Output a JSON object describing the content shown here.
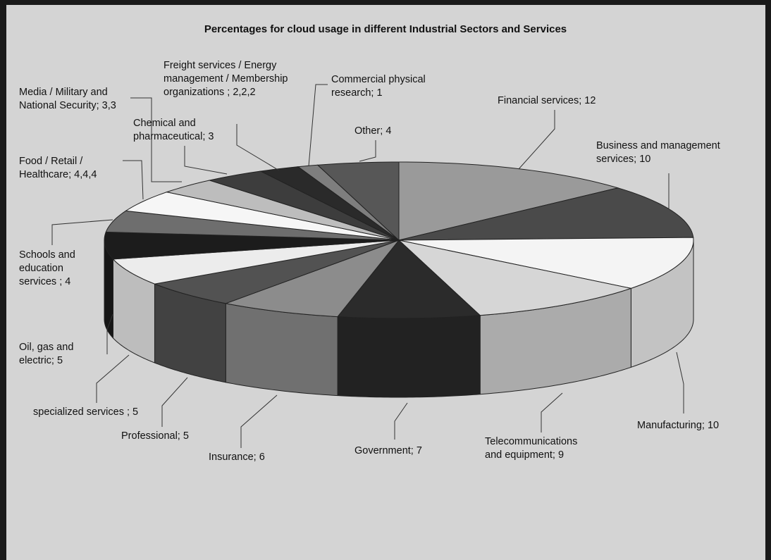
{
  "chart_data": {
    "type": "pie",
    "style": "3d-exploded-none",
    "title": "Percentages for cloud usage in different Industrial Sectors and Services",
    "slices": [
      {
        "label": "Financial services; 12",
        "value": 12,
        "color": "#9a9a9a"
      },
      {
        "label": "Business and management services; 10",
        "value": 10,
        "color": "#4a4a4a"
      },
      {
        "label": "Manufacturing; 10",
        "value": 10,
        "color": "#f4f4f4"
      },
      {
        "label": "Telecommunications and equipment; 9",
        "value": 9,
        "color": "#d6d6d6"
      },
      {
        "label": "Government; 7",
        "value": 7,
        "color": "#2b2b2b"
      },
      {
        "label": "Insurance; 6",
        "value": 6,
        "color": "#8c8c8c"
      },
      {
        "label": "Professional; 5",
        "value": 5,
        "color": "#525252"
      },
      {
        "label": "specialized services ; 5",
        "value": 5,
        "color": "#ececec"
      },
      {
        "label": "Oil, gas and electric; 5",
        "value": 5,
        "color": "#1c1c1c"
      },
      {
        "label": "Schools and education services ; 4",
        "value": 4,
        "color": "#6e6e6e"
      },
      {
        "label": "Food / Retail / Healthcare; 4,4,4",
        "value": 4,
        "color": "#f6f6f6"
      },
      {
        "label": "Media / Military and National Security; 3,3",
        "value": 3,
        "color": "#bdbdbd"
      },
      {
        "label": "Chemical and pharmaceutical; 3",
        "value": 3,
        "color": "#3d3d3d"
      },
      {
        "label": "Freight services / Energy management / Membership organizations ; 2,2,2",
        "value": 2,
        "color": "#2a2a2a"
      },
      {
        "label": "Commercial physical research; 1",
        "value": 1,
        "color": "#7e7e7e"
      },
      {
        "label": "Other; 4",
        "value": 4,
        "color": "#575757"
      }
    ]
  },
  "labels": {
    "financial": "Financial services; 12",
    "business_1": "Business and management",
    "business_2": "services; 10",
    "manufacturing": "Manufacturing; 10",
    "telecom_1": "Telecommunications",
    "telecom_2": "and equipment; 9",
    "government": "Government; 7",
    "insurance": "Insurance; 6",
    "professional": "Professional; 5",
    "specialized": "specialized services ; 5",
    "oil_1": "Oil, gas and",
    "oil_2": "electric; 5",
    "schools_1": "Schools and",
    "schools_2": "education",
    "schools_3": "services ; 4",
    "food_1": "Food / Retail /",
    "food_2": "Healthcare; 4,4,4",
    "media_1": "Media / Military and",
    "media_2": "National Security; 3,3",
    "chemical_1": "Chemical and",
    "chemical_2": "pharmaceutical; 3",
    "freight_1": "Freight services / Energy",
    "freight_2": "management / Membership",
    "freight_3": "organizations ; 2,2,2",
    "commercial_1": "Commercial physical",
    "commercial_2": "research; 1",
    "other": "Other; 4"
  }
}
